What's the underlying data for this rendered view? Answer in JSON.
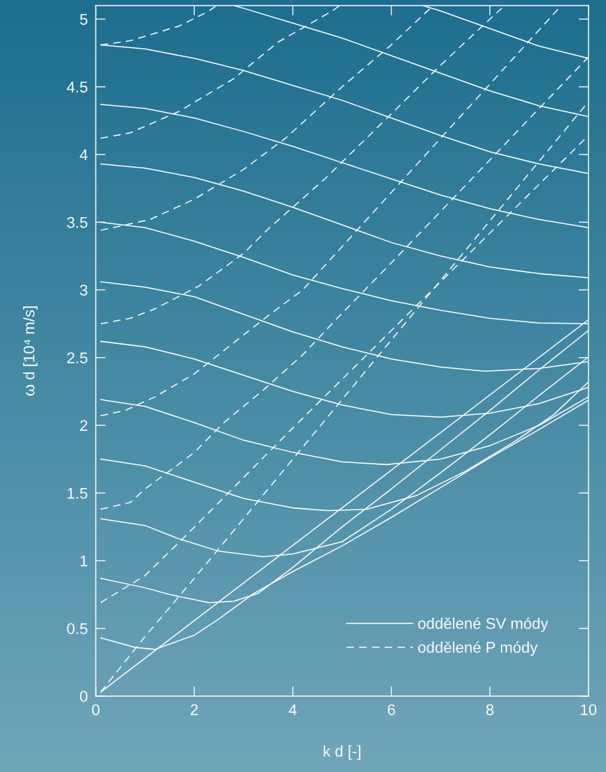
{
  "chart_data": {
    "type": "line",
    "xlabel": "k d [-]",
    "ylabel": "ω d [10⁴ m/s]",
    "xlim": [
      0,
      10
    ],
    "ylim": [
      0,
      5.1
    ],
    "xticks": [
      0,
      2,
      4,
      6,
      8,
      10
    ],
    "yticks": [
      0,
      0.5,
      1,
      1.5,
      2,
      2.5,
      3,
      3.5,
      4,
      4.5,
      5
    ],
    "legend": "bottom right",
    "series": [
      {
        "name": "oddělené SV módy",
        "color": "#ffffff",
        "line_style": "solid",
        "x": [
          0.1,
          10
        ],
        "values": [
          0.03,
          2.78
        ]
      },
      {
        "color": "#ffffff",
        "line_style": "solid",
        "x": [
          0.1,
          0.8,
          1.2,
          2,
          2.5,
          3.2,
          4,
          5,
          6,
          7,
          8,
          9,
          10
        ],
        "values": [
          0.43,
          0.36,
          0.345,
          0.45,
          0.57,
          0.756,
          0.92,
          1.11,
          1.32,
          1.54,
          1.76,
          1.97,
          2.185
        ]
      },
      {
        "color": "#ffffff",
        "line_style": "solid",
        "x": [
          0.1,
          1,
          1.5,
          2.3,
          2.8,
          3.3,
          4,
          5,
          6,
          7,
          8,
          9,
          10
        ],
        "values": [
          0.87,
          0.8,
          0.75,
          0.69,
          0.7,
          0.76,
          0.95,
          1.25,
          1.53,
          1.82,
          2.11,
          2.41,
          2.7
        ]
      },
      {
        "color": "#ffffff",
        "line_style": "solid",
        "x": [
          0.1,
          1,
          1.7,
          2.5,
          3.4,
          4,
          5,
          6,
          7,
          8,
          9,
          10
        ],
        "values": [
          1.31,
          1.26,
          1.16,
          1.07,
          1.03,
          1.05,
          1.14,
          1.38,
          1.65,
          1.93,
          2.22,
          2.505
        ]
      },
      {
        "color": "#ffffff",
        "line_style": "solid",
        "x": [
          0.1,
          1,
          2,
          3,
          4,
          4.7,
          5.5,
          6.5,
          7.5,
          8.5,
          9.3,
          10
        ],
        "values": [
          1.75,
          1.7,
          1.58,
          1.46,
          1.39,
          1.37,
          1.38,
          1.48,
          1.66,
          1.88,
          2.08,
          2.32
        ]
      },
      {
        "color": "#ffffff",
        "line_style": "solid",
        "x": [
          0.1,
          1,
          2,
          3,
          4,
          5,
          5.9,
          7,
          8,
          9,
          10
        ],
        "values": [
          2.19,
          2.14,
          2.02,
          1.89,
          1.8,
          1.73,
          1.71,
          1.75,
          1.85,
          2.0,
          2.21
        ]
      },
      {
        "color": "#ffffff",
        "line_style": "solid",
        "x": [
          0.1,
          1,
          2,
          3,
          4,
          5,
          6,
          7,
          8,
          9,
          10
        ],
        "values": [
          2.62,
          2.58,
          2.49,
          2.37,
          2.25,
          2.15,
          2.08,
          2.06,
          2.09,
          2.16,
          2.28
        ]
      },
      {
        "color": "#ffffff",
        "line_style": "solid",
        "x": [
          0.1,
          1,
          2,
          3,
          4,
          5,
          6,
          7,
          7.9,
          9,
          10
        ],
        "values": [
          3.06,
          3.02,
          2.95,
          2.82,
          2.69,
          2.58,
          2.49,
          2.43,
          2.4,
          2.42,
          2.47
        ]
      },
      {
        "color": "#ffffff",
        "line_style": "solid",
        "x": [
          0.1,
          1,
          2,
          3,
          4,
          5,
          6,
          7,
          8,
          9,
          10
        ],
        "values": [
          3.5,
          3.46,
          3.36,
          3.24,
          3.11,
          3.01,
          2.92,
          2.85,
          2.79,
          2.755,
          2.75
        ]
      },
      {
        "color": "#ffffff",
        "line_style": "solid",
        "x": [
          0.1,
          1,
          2,
          3,
          4,
          5,
          6,
          7,
          8,
          9,
          10
        ],
        "values": [
          3.93,
          3.9,
          3.83,
          3.73,
          3.61,
          3.48,
          3.35,
          3.25,
          3.17,
          3.12,
          3.09
        ]
      },
      {
        "color": "#ffffff",
        "line_style": "solid",
        "x": [
          0.1,
          1,
          2,
          3,
          4,
          5,
          6,
          7,
          8,
          9,
          10
        ],
        "values": [
          4.37,
          4.34,
          4.27,
          4.17,
          4.06,
          3.94,
          3.82,
          3.7,
          3.6,
          3.52,
          3.46
        ]
      },
      {
        "color": "#ffffff",
        "line_style": "solid",
        "x": [
          0.1,
          1,
          2,
          3,
          4,
          5,
          6,
          7,
          8,
          9,
          10
        ],
        "values": [
          4.81,
          4.78,
          4.71,
          4.62,
          4.51,
          4.4,
          4.27,
          4.14,
          4.02,
          3.93,
          3.86
        ]
      },
      {
        "color": "#ffffff",
        "line_style": "solid",
        "x": [
          2.81,
          3,
          4,
          5,
          6,
          7,
          8,
          9,
          10
        ],
        "values": [
          5.1,
          5.08,
          4.97,
          4.86,
          4.73,
          4.6,
          4.47,
          4.36,
          4.28
        ]
      },
      {
        "color": "#ffffff",
        "line_style": "solid",
        "x": [
          6.64,
          7,
          8,
          9,
          10
        ],
        "values": [
          5.1,
          5.06,
          4.93,
          4.8,
          4.71
        ]
      },
      {
        "name": "oddělené P módy",
        "color": "#ffffff",
        "line_style": "dashed",
        "x": [
          0.1,
          1,
          2,
          3,
          4,
          5,
          6,
          7,
          8,
          9,
          10
        ],
        "values": [
          0.03,
          0.44,
          0.87,
          1.31,
          1.75,
          2.19,
          2.63,
          3.07,
          3.51,
          3.95,
          4.39
        ]
      },
      {
        "color": "#ffffff",
        "line_style": "dashed",
        "x": [
          0.1,
          1,
          1.73,
          2.5,
          3.37,
          4,
          5,
          6,
          7,
          8,
          9,
          10
        ],
        "values": [
          0.69,
          0.89,
          1.15,
          1.43,
          1.75,
          1.98,
          2.34,
          2.7,
          3.06,
          3.42,
          3.78,
          4.14
        ]
      },
      {
        "color": "#ffffff",
        "line_style": "dashed",
        "x": [
          0.1,
          0.7,
          1,
          1.6,
          2,
          2.6,
          3.4,
          4.2,
          4.9,
          6,
          7,
          8,
          9,
          10
        ],
        "values": [
          1.38,
          1.43,
          1.53,
          1.69,
          1.8,
          2.02,
          2.26,
          2.52,
          2.79,
          3.2,
          3.58,
          3.96,
          4.34,
          4.72
        ]
      },
      {
        "color": "#ffffff",
        "line_style": "dashed",
        "x": [
          0.1,
          0.6,
          1.2,
          2,
          2.8,
          3.5,
          4.2,
          5,
          6,
          7,
          8,
          9,
          9.45
        ],
        "values": [
          2.07,
          2.11,
          2.21,
          2.38,
          2.61,
          2.81,
          3.0,
          3.32,
          3.72,
          4.12,
          4.52,
          4.92,
          5.1
        ]
      },
      {
        "color": "#ffffff",
        "line_style": "dashed",
        "x": [
          0.1,
          0.7,
          1.2,
          2.1,
          3,
          3.5,
          4.65,
          6,
          7,
          8,
          8.3
        ],
        "values": [
          2.75,
          2.79,
          2.86,
          3.03,
          3.27,
          3.45,
          3.82,
          4.3,
          4.66,
          5.0,
          5.1
        ]
      },
      {
        "color": "#ffffff",
        "line_style": "dashed",
        "x": [
          0.1,
          1.1,
          2,
          3,
          3.85,
          5,
          6,
          6.85
        ],
        "values": [
          3.44,
          3.52,
          3.67,
          3.89,
          4.12,
          4.5,
          4.81,
          5.1
        ]
      },
      {
        "color": "#ffffff",
        "line_style": "dashed",
        "x": [
          0.1,
          0.7,
          1.7,
          2.8,
          3.7,
          4.8,
          4.95
        ],
        "values": [
          4.12,
          4.16,
          4.32,
          4.56,
          4.83,
          5.06,
          5.1
        ]
      },
      {
        "color": "#ffffff",
        "line_style": "dashed",
        "x": [
          0.1,
          0.7,
          1.7,
          2.3,
          2.45
        ],
        "values": [
          4.81,
          4.84,
          4.95,
          5.06,
          5.1
        ]
      }
    ]
  }
}
